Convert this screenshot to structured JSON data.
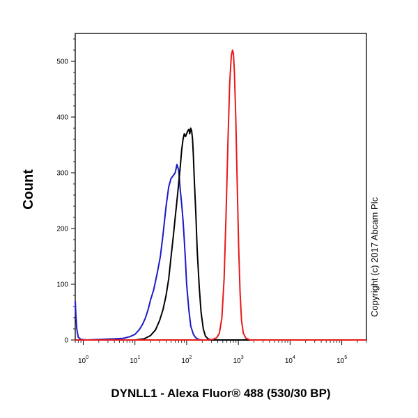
{
  "chart_data": {
    "type": "line",
    "xlabel": "DYNLL1 - Alexa Fluor® 488 (530/30 BP)",
    "ylabel": "Count",
    "x_scale": "log",
    "xlim": [
      0.7,
      300000
    ],
    "ylim": [
      0,
      550
    ],
    "x_ticks": [
      {
        "base": "10",
        "exp": "0",
        "value": 1
      },
      {
        "base": "10",
        "exp": "1",
        "value": 10
      },
      {
        "base": "10",
        "exp": "2",
        "value": 100
      },
      {
        "base": "10",
        "exp": "3",
        "value": 1000
      },
      {
        "base": "10",
        "exp": "4",
        "value": 10000
      },
      {
        "base": "10",
        "exp": "5",
        "value": 100000
      }
    ],
    "y_ticks": [
      0,
      100,
      200,
      300,
      400,
      500
    ],
    "grid": false,
    "series": [
      {
        "color": "#1a1ac8",
        "points": [
          [
            0.7,
            70
          ],
          [
            0.72,
            45
          ],
          [
            0.75,
            20
          ],
          [
            0.8,
            5
          ],
          [
            0.9,
            1
          ],
          [
            1.2,
            0
          ],
          [
            2,
            1
          ],
          [
            4,
            2
          ],
          [
            6,
            3
          ],
          [
            8,
            6
          ],
          [
            10,
            10
          ],
          [
            12,
            18
          ],
          [
            14,
            28
          ],
          [
            16,
            40
          ],
          [
            18,
            55
          ],
          [
            20,
            72
          ],
          [
            23,
            90
          ],
          [
            27,
            120
          ],
          [
            31,
            150
          ],
          [
            35,
            190
          ],
          [
            40,
            240
          ],
          [
            45,
            275
          ],
          [
            50,
            290
          ],
          [
            55,
            295
          ],
          [
            60,
            300
          ],
          [
            65,
            315
          ],
          [
            70,
            305
          ],
          [
            75,
            270
          ],
          [
            80,
            245
          ],
          [
            85,
            215
          ],
          [
            90,
            180
          ],
          [
            95,
            140
          ],
          [
            100,
            100
          ],
          [
            110,
            55
          ],
          [
            120,
            25
          ],
          [
            135,
            10
          ],
          [
            150,
            4
          ],
          [
            170,
            1
          ],
          [
            200,
            0
          ],
          [
            300000,
            0
          ]
        ]
      },
      {
        "color": "#000000",
        "points": [
          [
            0.7,
            0
          ],
          [
            10,
            0
          ],
          [
            15,
            2
          ],
          [
            20,
            8
          ],
          [
            25,
            18
          ],
          [
            30,
            35
          ],
          [
            35,
            55
          ],
          [
            40,
            80
          ],
          [
            45,
            110
          ],
          [
            50,
            150
          ],
          [
            55,
            185
          ],
          [
            60,
            220
          ],
          [
            65,
            250
          ],
          [
            70,
            280
          ],
          [
            75,
            310
          ],
          [
            80,
            340
          ],
          [
            85,
            360
          ],
          [
            90,
            370
          ],
          [
            95,
            365
          ],
          [
            100,
            370
          ],
          [
            105,
            375
          ],
          [
            110,
            378
          ],
          [
            115,
            370
          ],
          [
            120,
            380
          ],
          [
            125,
            375
          ],
          [
            130,
            360
          ],
          [
            135,
            330
          ],
          [
            140,
            290
          ],
          [
            150,
            230
          ],
          [
            160,
            160
          ],
          [
            175,
            95
          ],
          [
            190,
            50
          ],
          [
            210,
            20
          ],
          [
            230,
            7
          ],
          [
            260,
            2
          ],
          [
            300,
            0
          ],
          [
            300000,
            0
          ]
        ]
      },
      {
        "color": "#e81818",
        "points": [
          [
            0.7,
            0
          ],
          [
            250,
            0
          ],
          [
            320,
            1
          ],
          [
            380,
            4
          ],
          [
            430,
            12
          ],
          [
            480,
            40
          ],
          [
            530,
            110
          ],
          [
            580,
            230
          ],
          [
            630,
            360
          ],
          [
            680,
            460
          ],
          [
            730,
            510
          ],
          [
            770,
            520
          ],
          [
            800,
            515
          ],
          [
            840,
            480
          ],
          [
            890,
            400
          ],
          [
            950,
            280
          ],
          [
            1010,
            170
          ],
          [
            1080,
            85
          ],
          [
            1150,
            35
          ],
          [
            1250,
            12
          ],
          [
            1400,
            3
          ],
          [
            1700,
            0
          ],
          [
            300000,
            0
          ]
        ]
      }
    ]
  },
  "copyright": "Copyright (c) 2017 Abcam Plc"
}
